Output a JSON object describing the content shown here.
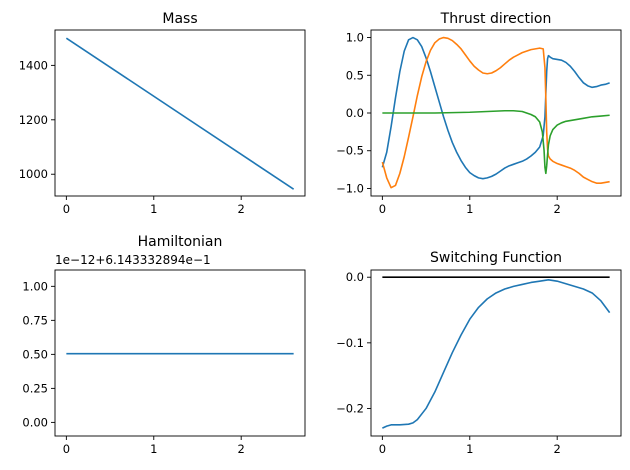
{
  "colors": {
    "c0": "#1f77b4",
    "c1": "#ff7f0e",
    "c2": "#2ca02c",
    "black": "#000000",
    "axis": "#000000"
  },
  "chart_data": [
    {
      "type": "line",
      "title": "Mass",
      "xlabel": "",
      "ylabel": "",
      "xlim": [
        -0.13,
        2.73
      ],
      "ylim": [
        920,
        1530
      ],
      "xticks": [
        0,
        1,
        2
      ],
      "xtick_labels": [
        "0",
        "1",
        "2"
      ],
      "yticks": [
        1000,
        1200,
        1400
      ],
      "ytick_labels": [
        "1000",
        "1200",
        "1400"
      ],
      "grid": false,
      "series": [
        {
          "color_key": "c0",
          "x": [
            0,
            2.6
          ],
          "y": [
            1500,
            945
          ]
        }
      ]
    },
    {
      "type": "line",
      "title": "Thrust direction",
      "xlabel": "",
      "ylabel": "",
      "xlim": [
        -0.13,
        2.73
      ],
      "ylim": [
        -1.1,
        1.1
      ],
      "xticks": [
        0,
        1,
        2
      ],
      "xtick_labels": [
        "0",
        "1",
        "2"
      ],
      "yticks": [
        -1.0,
        -0.5,
        0.0,
        0.5,
        1.0
      ],
      "ytick_labels": [
        "−1.0",
        "−0.5",
        "0.0",
        "0.5",
        "1.0"
      ],
      "grid": false,
      "series": [
        {
          "color_key": "c0",
          "x": [
            0,
            0.05,
            0.1,
            0.15,
            0.2,
            0.25,
            0.3,
            0.35,
            0.4,
            0.45,
            0.5,
            0.55,
            0.6,
            0.65,
            0.7,
            0.75,
            0.8,
            0.85,
            0.9,
            0.95,
            1.0,
            1.05,
            1.1,
            1.15,
            1.2,
            1.25,
            1.3,
            1.35,
            1.4,
            1.45,
            1.5,
            1.55,
            1.6,
            1.65,
            1.7,
            1.75,
            1.8,
            1.84,
            1.86,
            1.87,
            1.88,
            1.89,
            1.9,
            1.92,
            1.95,
            2.0,
            2.05,
            2.1,
            2.15,
            2.2,
            2.25,
            2.3,
            2.35,
            2.4,
            2.45,
            2.5,
            2.55,
            2.6
          ],
          "y": [
            -0.72,
            -0.52,
            -0.18,
            0.2,
            0.55,
            0.82,
            0.97,
            1.0,
            0.97,
            0.88,
            0.73,
            0.55,
            0.35,
            0.15,
            -0.05,
            -0.23,
            -0.39,
            -0.52,
            -0.63,
            -0.72,
            -0.79,
            -0.83,
            -0.86,
            -0.87,
            -0.86,
            -0.84,
            -0.81,
            -0.77,
            -0.73,
            -0.7,
            -0.68,
            -0.66,
            -0.64,
            -0.61,
            -0.57,
            -0.52,
            -0.45,
            -0.3,
            -0.05,
            0.25,
            0.55,
            0.72,
            0.76,
            0.74,
            0.72,
            0.71,
            0.7,
            0.67,
            0.62,
            0.55,
            0.47,
            0.4,
            0.36,
            0.34,
            0.35,
            0.37,
            0.38,
            0.4
          ]
        },
        {
          "color_key": "c1",
          "x": [
            0,
            0.05,
            0.1,
            0.15,
            0.2,
            0.25,
            0.3,
            0.35,
            0.4,
            0.45,
            0.5,
            0.55,
            0.6,
            0.65,
            0.7,
            0.75,
            0.8,
            0.85,
            0.9,
            0.95,
            1.0,
            1.05,
            1.1,
            1.15,
            1.2,
            1.25,
            1.3,
            1.35,
            1.4,
            1.45,
            1.5,
            1.55,
            1.6,
            1.65,
            1.7,
            1.75,
            1.8,
            1.84,
            1.86,
            1.87,
            1.88,
            1.89,
            1.9,
            1.92,
            1.95,
            2.0,
            2.05,
            2.1,
            2.15,
            2.2,
            2.25,
            2.3,
            2.35,
            2.4,
            2.45,
            2.5,
            2.55,
            2.6
          ],
          "y": [
            -0.65,
            -0.86,
            -0.99,
            -0.96,
            -0.8,
            -0.58,
            -0.32,
            -0.05,
            0.23,
            0.48,
            0.68,
            0.83,
            0.93,
            0.98,
            1.0,
            0.99,
            0.96,
            0.91,
            0.85,
            0.77,
            0.69,
            0.62,
            0.57,
            0.53,
            0.52,
            0.53,
            0.56,
            0.6,
            0.65,
            0.7,
            0.74,
            0.77,
            0.8,
            0.82,
            0.84,
            0.85,
            0.86,
            0.85,
            0.6,
            0.2,
            -0.25,
            -0.48,
            -0.57,
            -0.61,
            -0.64,
            -0.67,
            -0.69,
            -0.71,
            -0.73,
            -0.76,
            -0.8,
            -0.85,
            -0.88,
            -0.91,
            -0.93,
            -0.93,
            -0.92,
            -0.91
          ]
        },
        {
          "color_key": "c2",
          "x": [
            0,
            0.2,
            0.4,
            0.6,
            0.8,
            1.0,
            1.2,
            1.4,
            1.5,
            1.6,
            1.7,
            1.75,
            1.8,
            1.83,
            1.85,
            1.86,
            1.87,
            1.88,
            1.89,
            1.9,
            1.92,
            1.95,
            2.0,
            2.05,
            2.1,
            2.2,
            2.3,
            2.4,
            2.5,
            2.6
          ],
          "y": [
            0.0,
            0.0,
            0.0,
            0.0,
            0.005,
            0.01,
            0.02,
            0.03,
            0.03,
            0.02,
            -0.02,
            -0.05,
            -0.12,
            -0.25,
            -0.5,
            -0.72,
            -0.8,
            -0.7,
            -0.55,
            -0.42,
            -0.3,
            -0.22,
            -0.16,
            -0.13,
            -0.11,
            -0.09,
            -0.07,
            -0.05,
            -0.04,
            -0.03
          ]
        }
      ]
    },
    {
      "type": "line",
      "title": "Hamiltonian",
      "offset_text": "1e−12+6.143332894e−1",
      "xlabel": "",
      "ylabel": "",
      "xlim": [
        -0.13,
        2.73
      ],
      "ylim": [
        -0.1,
        1.12
      ],
      "xticks": [
        0,
        1,
        2
      ],
      "xtick_labels": [
        "0",
        "1",
        "2"
      ],
      "yticks": [
        0.0,
        0.25,
        0.5,
        0.75,
        1.0
      ],
      "ytick_labels": [
        "0.00",
        "0.25",
        "0.50",
        "0.75",
        "1.00"
      ],
      "grid": false,
      "series": [
        {
          "color_key": "c0",
          "x": [
            0,
            2.6
          ],
          "y": [
            0.505,
            0.505
          ]
        }
      ]
    },
    {
      "type": "line",
      "title": "Switching Function",
      "xlabel": "",
      "ylabel": "",
      "xlim": [
        -0.13,
        2.73
      ],
      "ylim": [
        -0.242,
        0.011
      ],
      "xticks": [
        0,
        1,
        2
      ],
      "xtick_labels": [
        "0",
        "1",
        "2"
      ],
      "yticks": [
        -0.2,
        -0.1,
        0.0
      ],
      "ytick_labels": [
        "−0.2",
        "−0.1",
        "0.0"
      ],
      "grid": false,
      "series": [
        {
          "color_key": "black",
          "x": [
            0,
            2.6
          ],
          "y": [
            0.0,
            0.0
          ]
        },
        {
          "color_key": "c0",
          "x": [
            0,
            0.05,
            0.1,
            0.15,
            0.2,
            0.3,
            0.35,
            0.4,
            0.5,
            0.6,
            0.7,
            0.8,
            0.9,
            1.0,
            1.1,
            1.2,
            1.3,
            1.4,
            1.5,
            1.6,
            1.7,
            1.8,
            1.9,
            2.0,
            2.1,
            2.2,
            2.3,
            2.4,
            2.5,
            2.6
          ],
          "y": [
            -0.23,
            -0.227,
            -0.225,
            -0.225,
            -0.225,
            -0.224,
            -0.222,
            -0.217,
            -0.2,
            -0.175,
            -0.145,
            -0.115,
            -0.088,
            -0.064,
            -0.046,
            -0.033,
            -0.024,
            -0.018,
            -0.014,
            -0.011,
            -0.008,
            -0.006,
            -0.004,
            -0.006,
            -0.01,
            -0.014,
            -0.018,
            -0.024,
            -0.036,
            -0.054
          ]
        }
      ]
    }
  ]
}
